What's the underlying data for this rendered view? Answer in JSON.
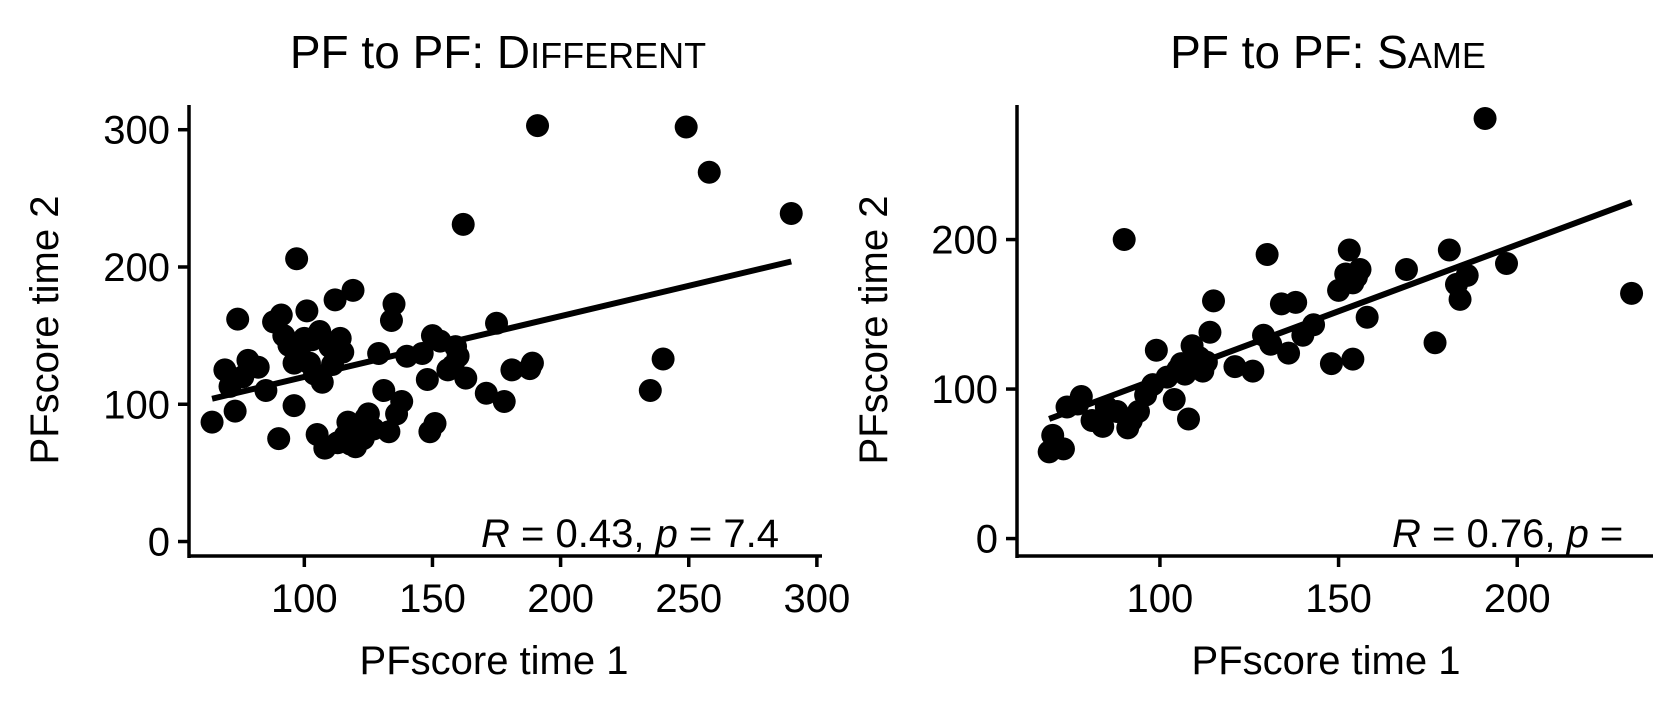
{
  "chart_data": [
    {
      "type": "scatter",
      "title": {
        "prefix": "PF to PF: ",
        "cap1": "D",
        "rest": "ifferent"
      },
      "xlabel": "PFscore time 1",
      "ylabel": "PFscore time 2",
      "xlim": [
        55,
        302
      ],
      "ylim": [
        -12,
        318
      ],
      "xticks": [
        100,
        150,
        200,
        250,
        300
      ],
      "xtick_labels": [
        "100",
        "150",
        "200",
        "250",
        "300"
      ],
      "yticks": [
        0,
        100,
        200,
        300
      ],
      "ytick_labels": [
        "0",
        "100",
        "200",
        "300"
      ],
      "stat": {
        "r_symbol": "R",
        "r_text": " = 0.43, ",
        "p_symbol": "p",
        "p_text": " = 7.4"
      },
      "trend": {
        "x": [
          64,
          290
        ],
        "y": [
          104,
          204
        ]
      },
      "points": {
        "x": [
          64,
          69,
          71,
          73,
          74,
          76,
          78,
          82,
          85,
          88,
          90,
          91,
          92,
          94,
          96,
          96,
          97,
          98,
          100,
          101,
          102,
          103,
          104,
          105,
          106,
          107,
          108,
          110,
          111,
          112,
          113,
          114,
          115,
          116,
          117,
          118,
          119,
          120,
          121,
          122,
          123,
          124,
          125,
          127,
          129,
          131,
          133,
          134,
          135,
          136,
          138,
          140,
          146,
          148,
          149,
          150,
          151,
          153,
          156,
          158,
          159,
          160,
          162,
          163,
          171,
          175,
          178,
          181,
          188,
          189,
          191,
          235,
          240,
          249,
          258,
          290
        ],
        "y": [
          87,
          125,
          113,
          95,
          162,
          120,
          132,
          127,
          110,
          160,
          75,
          165,
          150,
          143,
          130,
          99,
          206,
          138,
          148,
          168,
          130,
          147,
          122,
          78,
          153,
          116,
          68,
          142,
          129,
          176,
          72,
          148,
          138,
          77,
          87,
          71,
          183,
          69,
          80,
          85,
          75,
          90,
          93,
          82,
          137,
          110,
          80,
          161,
          173,
          93,
          102,
          135,
          137,
          118,
          80,
          150,
          86,
          146,
          125,
          128,
          142,
          135,
          231,
          119,
          108,
          159,
          102,
          125,
          126,
          130,
          303,
          110,
          133,
          302,
          269,
          239
        ]
      }
    },
    {
      "type": "scatter",
      "title": {
        "prefix": "PF to PF: ",
        "cap1": "S",
        "rest": "ame"
      },
      "xlabel": "PFscore time 1",
      "ylabel": "PFscore time 2",
      "xlim": [
        60,
        238
      ],
      "ylim": [
        -13,
        290
      ],
      "xticks": [
        100,
        150,
        200
      ],
      "xtick_labels": [
        "100",
        "150",
        "200"
      ],
      "yticks": [
        0,
        100,
        200
      ],
      "ytick_labels": [
        "0",
        "100",
        "200"
      ],
      "stat": {
        "r_symbol": "R",
        "r_text": " = 0.76, ",
        "p_symbol": "p",
        "p_text": " ="
      },
      "trend": {
        "x": [
          69,
          232
        ],
        "y": [
          80,
          225
        ]
      },
      "points": {
        "x": [
          69,
          70,
          73,
          74,
          77,
          78,
          81,
          84,
          85,
          88,
          90,
          91,
          92,
          94,
          96,
          98,
          99,
          102,
          104,
          105,
          106,
          107,
          108,
          109,
          110,
          111,
          112,
          113,
          114,
          115,
          121,
          126,
          129,
          130,
          131,
          134,
          136,
          138,
          140,
          143,
          148,
          150,
          152,
          153,
          154,
          154,
          155,
          156,
          158,
          169,
          177,
          181,
          183,
          184,
          186,
          191,
          197,
          232
        ],
        "y": [
          58,
          69,
          60,
          88,
          90,
          95,
          79,
          75,
          88,
          85,
          200,
          74,
          79,
          85,
          96,
          103,
          126,
          108,
          93,
          113,
          117,
          110,
          80,
          129,
          119,
          121,
          112,
          118,
          138,
          159,
          115,
          112,
          136,
          190,
          130,
          157,
          124,
          158,
          136,
          143,
          117,
          166,
          177,
          193,
          120,
          171,
          175,
          180,
          148,
          180,
          131,
          193,
          170,
          160,
          176,
          281,
          184,
          164
        ]
      }
    }
  ]
}
